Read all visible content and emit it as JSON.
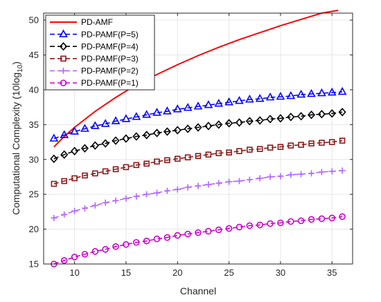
{
  "chart_data": {
    "type": "line",
    "xlabel": "Channel",
    "ylabel_main": "Computational Complexity (10log",
    "ylabel_sub": "10",
    "ylabel_end": ")",
    "xlim": [
      7,
      37
    ],
    "ylim": [
      15,
      51
    ],
    "xticks": [
      10,
      15,
      20,
      25,
      30,
      35
    ],
    "yticks": [
      15,
      20,
      25,
      30,
      35,
      40,
      45,
      50
    ],
    "grid": true,
    "legend_position": "top-left",
    "x": [
      8,
      9,
      10,
      11,
      12,
      13,
      14,
      15,
      16,
      17,
      18,
      19,
      20,
      21,
      22,
      23,
      24,
      25,
      26,
      27,
      28,
      29,
      30,
      31,
      32,
      33,
      34,
      35,
      36
    ],
    "series": [
      {
        "name": "PD-AMF",
        "color": "#ff0000",
        "marker": "none",
        "dash": "solid",
        "x": [
          8,
          9,
          10,
          12,
          14,
          16,
          18,
          20,
          22,
          24,
          26,
          28,
          30,
          32,
          34,
          35.6
        ],
        "values": [
          31.8,
          33.3,
          34.6,
          36.9,
          38.9,
          40.7,
          42.2,
          43.6,
          44.9,
          46.1,
          47.2,
          48.2,
          49.2,
          50.1,
          51.0,
          51.4
        ]
      },
      {
        "name": "PD-PAMF(P=5)",
        "color": "#0000ff",
        "marker": "triangle",
        "dash": "dashed",
        "values": [
          33.0,
          33.5,
          34.0,
          34.4,
          34.8,
          35.1,
          35.5,
          35.8,
          36.1,
          36.4,
          36.7,
          36.9,
          37.2,
          37.4,
          37.6,
          37.8,
          38.0,
          38.2,
          38.4,
          38.6,
          38.7,
          38.9,
          39.0,
          39.1,
          39.3,
          39.4,
          39.5,
          39.6,
          39.7
        ]
      },
      {
        "name": "PD-PAMF(P=4)",
        "color": "#000000",
        "marker": "diamond",
        "dash": "dashed",
        "values": [
          30.1,
          30.7,
          31.2,
          31.6,
          32.0,
          32.3,
          32.7,
          33.0,
          33.3,
          33.5,
          33.8,
          34.0,
          34.2,
          34.4,
          34.6,
          34.8,
          35.0,
          35.2,
          35.3,
          35.5,
          35.6,
          35.8,
          35.9,
          36.1,
          36.2,
          36.4,
          36.5,
          36.6,
          36.8
        ]
      },
      {
        "name": "PD-PAMF(P=3)",
        "color": "#8b1a1a",
        "marker": "square",
        "dash": "dashed",
        "values": [
          26.5,
          26.9,
          27.3,
          27.7,
          28.0,
          28.3,
          28.6,
          28.9,
          29.2,
          29.4,
          29.7,
          29.9,
          30.1,
          30.3,
          30.5,
          30.7,
          30.9,
          31.0,
          31.2,
          31.4,
          31.5,
          31.7,
          31.8,
          32.0,
          32.1,
          32.3,
          32.4,
          32.5,
          32.7
        ]
      },
      {
        "name": "PD-PAMF(P=2)",
        "color": "#b266ff",
        "marker": "plus",
        "dash": "dashed",
        "values": [
          21.6,
          22.1,
          22.6,
          23.0,
          23.4,
          23.8,
          24.1,
          24.4,
          24.7,
          25.0,
          25.2,
          25.5,
          25.7,
          26.0,
          26.2,
          26.4,
          26.6,
          26.8,
          26.9,
          27.1,
          27.3,
          27.5,
          27.6,
          27.8,
          27.9,
          28.0,
          28.2,
          28.3,
          28.4
        ]
      },
      {
        "name": "PD-PAMF(P=1)",
        "color": "#cc00cc",
        "marker": "circle",
        "dash": "dashed",
        "values": [
          15.0,
          15.5,
          16.0,
          16.4,
          16.8,
          17.1,
          17.5,
          17.8,
          18.1,
          18.3,
          18.6,
          18.8,
          19.1,
          19.3,
          19.5,
          19.7,
          19.9,
          20.1,
          20.3,
          20.5,
          20.6,
          20.8,
          20.9,
          21.1,
          21.2,
          21.4,
          21.5,
          21.6,
          21.8
        ]
      }
    ]
  }
}
